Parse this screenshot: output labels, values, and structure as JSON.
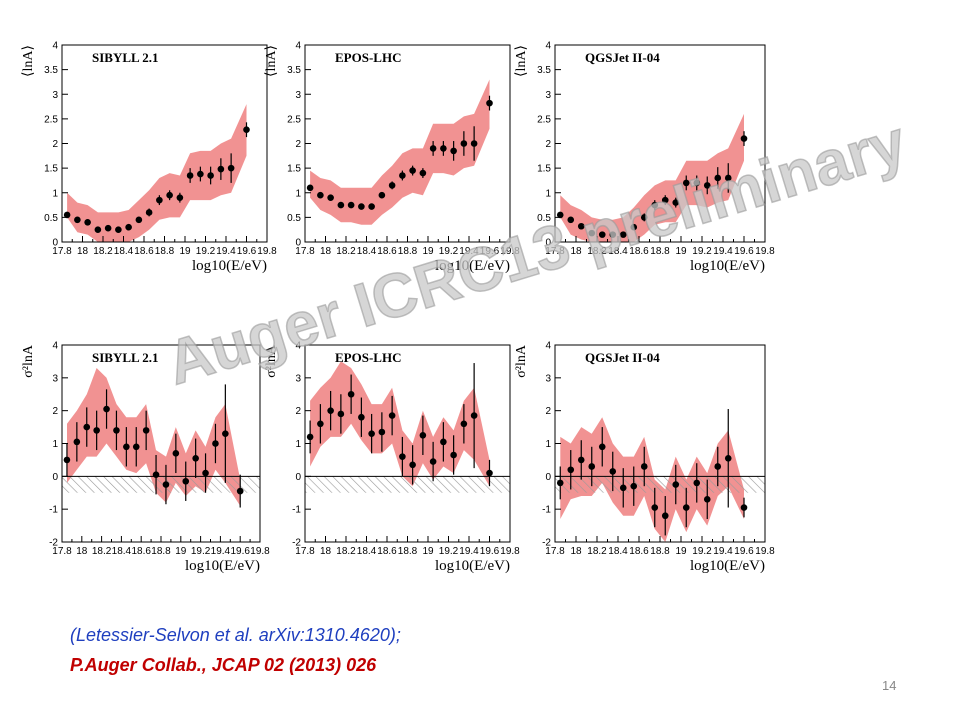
{
  "watermark": "Auger ICRC13 preliminary",
  "references": {
    "line1": "(Letessier-Selvon et al. arXiv:1310.4620);",
    "line2": "P.Auger Collab., JCAP 02 (2013) 026"
  },
  "page_number": "14",
  "colors": {
    "band": "#f08c8c",
    "points": "#000000",
    "hatch": "#9a9a9a",
    "ref_blue": "#1f3fbf",
    "ref_red": "#c00000"
  },
  "chart_data": [
    {
      "id": "lnA-sibyll",
      "type": "scatter",
      "title": "SIBYLL 2.1",
      "ylabel": "⟨lnA⟩",
      "xlabel": "log10(E/eV)",
      "xlim": [
        17.8,
        19.8
      ],
      "ylim": [
        0,
        4
      ],
      "xticks": [
        "17.8",
        "18",
        "18.2",
        "18.4",
        "18.6",
        "18.8",
        "19",
        "19.2",
        "19.4",
        "19.6",
        "19.8"
      ],
      "yticks": [
        "0",
        "0.5",
        "1",
        "1.5",
        "2",
        "2.5",
        "3",
        "3.5",
        "4"
      ],
      "x": [
        17.85,
        17.95,
        18.05,
        18.15,
        18.25,
        18.35,
        18.45,
        18.55,
        18.65,
        18.75,
        18.85,
        18.95,
        19.05,
        19.15,
        19.25,
        19.35,
        19.45,
        19.6
      ],
      "y": [
        0.55,
        0.45,
        0.4,
        0.25,
        0.28,
        0.25,
        0.3,
        0.45,
        0.6,
        0.85,
        0.95,
        0.9,
        1.35,
        1.38,
        1.35,
        1.48,
        1.5,
        2.28
      ],
      "err": [
        0.05,
        0.05,
        0.05,
        0.05,
        0.05,
        0.05,
        0.05,
        0.05,
        0.08,
        0.1,
        0.1,
        0.1,
        0.15,
        0.15,
        0.18,
        0.22,
        0.3,
        0.15
      ],
      "band_low": [
        0.5,
        0.2,
        0.15,
        0,
        0,
        0,
        0,
        0.1,
        0.25,
        0.45,
        0.5,
        0.5,
        0.85,
        0.85,
        0.85,
        0.95,
        1.0,
        1.75
      ],
      "band_high": [
        1.0,
        0.8,
        0.75,
        0.6,
        0.6,
        0.6,
        0.65,
        0.85,
        1.05,
        1.3,
        1.4,
        1.35,
        1.8,
        1.85,
        1.85,
        2.0,
        2.1,
        2.8
      ]
    },
    {
      "id": "lnA-epos",
      "type": "scatter",
      "title": "EPOS-LHC",
      "ylabel": "⟨lnA⟩",
      "xlabel": "log10(E/eV)",
      "xlim": [
        17.8,
        19.8
      ],
      "ylim": [
        0,
        4
      ],
      "xticks": [
        "17.8",
        "18",
        "18.2",
        "18.4",
        "18.6",
        "18.8",
        "19",
        "19.2",
        "19.4",
        "19.6",
        "19.8"
      ],
      "yticks": [
        "0",
        "0.5",
        "1",
        "1.5",
        "2",
        "2.5",
        "3",
        "3.5",
        "4"
      ],
      "x": [
        17.85,
        17.95,
        18.05,
        18.15,
        18.25,
        18.35,
        18.45,
        18.55,
        18.65,
        18.75,
        18.85,
        18.95,
        19.05,
        19.15,
        19.25,
        19.35,
        19.45,
        19.6
      ],
      "y": [
        1.1,
        0.95,
        0.9,
        0.75,
        0.75,
        0.72,
        0.72,
        0.95,
        1.15,
        1.35,
        1.45,
        1.4,
        1.9,
        1.9,
        1.85,
        2.0,
        2.0,
        2.82
      ],
      "err": [
        0.05,
        0.05,
        0.05,
        0.05,
        0.05,
        0.05,
        0.05,
        0.05,
        0.08,
        0.1,
        0.1,
        0.1,
        0.15,
        0.15,
        0.2,
        0.25,
        0.35,
        0.15
      ],
      "band_low": [
        0.9,
        0.65,
        0.55,
        0.4,
        0.4,
        0.35,
        0.35,
        0.55,
        0.7,
        0.9,
        1.0,
        0.95,
        1.4,
        1.4,
        1.35,
        1.5,
        1.55,
        2.3
      ],
      "band_high": [
        1.45,
        1.3,
        1.25,
        1.1,
        1.1,
        1.1,
        1.1,
        1.35,
        1.55,
        1.8,
        1.9,
        1.9,
        2.4,
        2.4,
        2.4,
        2.55,
        2.6,
        3.3
      ]
    },
    {
      "id": "lnA-qgsjet",
      "type": "scatter",
      "title": "QGSJet II-04",
      "ylabel": "⟨lnA⟩",
      "xlabel": "log10(E/eV)",
      "xlim": [
        17.8,
        19.8
      ],
      "ylim": [
        0,
        4
      ],
      "xticks": [
        "17.8",
        "18",
        "18.2",
        "18.4",
        "18.6",
        "18.8",
        "19",
        "19.2",
        "19.4",
        "19.6",
        "19.8"
      ],
      "yticks": [
        "0",
        "0.5",
        "1",
        "1.5",
        "2",
        "2.5",
        "3",
        "3.5",
        "4"
      ],
      "x": [
        17.85,
        17.95,
        18.05,
        18.15,
        18.25,
        18.35,
        18.45,
        18.55,
        18.65,
        18.75,
        18.85,
        18.95,
        19.05,
        19.15,
        19.25,
        19.35,
        19.45,
        19.6
      ],
      "y": [
        0.55,
        0.45,
        0.32,
        0.18,
        0.15,
        0.15,
        0.15,
        0.3,
        0.5,
        0.75,
        0.85,
        0.8,
        1.2,
        1.2,
        1.15,
        1.3,
        1.3,
        2.1
      ],
      "err": [
        0.05,
        0.05,
        0.05,
        0.05,
        0.05,
        0.05,
        0.05,
        0.05,
        0.08,
        0.1,
        0.1,
        0.1,
        0.15,
        0.15,
        0.18,
        0.22,
        0.3,
        0.15
      ],
      "band_low": [
        0.5,
        0.15,
        0.05,
        0,
        0,
        0,
        0,
        0,
        0.15,
        0.35,
        0.4,
        0.4,
        0.75,
        0.75,
        0.7,
        0.8,
        0.85,
        1.65
      ],
      "band_high": [
        0.95,
        0.75,
        0.65,
        0.5,
        0.45,
        0.45,
        0.5,
        0.7,
        0.95,
        1.15,
        1.25,
        1.25,
        1.65,
        1.65,
        1.65,
        1.8,
        1.9,
        2.6
      ]
    },
    {
      "id": "var-sibyll",
      "type": "scatter",
      "title": "SIBYLL 2.1",
      "ylabel": "σ²lnA",
      "xlabel": "log10(E/eV)",
      "xlim": [
        17.8,
        19.8
      ],
      "ylim": [
        -2,
        4
      ],
      "xticks": [
        "17.8",
        "18",
        "18.2",
        "18.4",
        "18.6",
        "18.8",
        "19",
        "19.2",
        "19.4",
        "19.6",
        "19.8"
      ],
      "yticks": [
        "-2",
        "-1",
        "0",
        "1",
        "2",
        "3",
        "4"
      ],
      "x": [
        17.85,
        17.95,
        18.05,
        18.15,
        18.25,
        18.35,
        18.45,
        18.55,
        18.65,
        18.75,
        18.85,
        18.95,
        19.05,
        19.15,
        19.25,
        19.35,
        19.45,
        19.6
      ],
      "y": [
        0.5,
        1.05,
        1.5,
        1.4,
        2.05,
        1.4,
        0.9,
        0.9,
        1.4,
        0.05,
        -0.25,
        0.7,
        -0.15,
        0.55,
        0.1,
        1.0,
        1.3,
        -0.45
      ],
      "err": [
        0.5,
        0.6,
        0.6,
        0.6,
        0.6,
        0.6,
        0.6,
        0.6,
        0.6,
        0.6,
        0.6,
        0.6,
        0.6,
        0.6,
        0.6,
        0.6,
        1.5,
        0.5
      ],
      "band_low": [
        -0.2,
        0.2,
        0.6,
        0.6,
        1.0,
        0.6,
        0.2,
        0.1,
        0.4,
        -0.5,
        -0.8,
        -0.2,
        -0.6,
        -0.3,
        -0.5,
        0.2,
        -0.2,
        -0.9
      ],
      "band_high": [
        1.6,
        2.0,
        2.5,
        3.3,
        3.0,
        2.2,
        1.8,
        1.8,
        2.2,
        0.8,
        0.6,
        1.5,
        0.7,
        1.4,
        0.9,
        1.8,
        2.2,
        -0.1
      ],
      "hatch_range": [
        -0.5,
        0
      ]
    },
    {
      "id": "var-epos",
      "type": "scatter",
      "title": "EPOS-LHC",
      "ylabel": "σ²lnA",
      "xlabel": "log10(E/eV)",
      "xlim": [
        17.8,
        19.8
      ],
      "ylim": [
        -2,
        4
      ],
      "xticks": [
        "17.8",
        "18",
        "18.2",
        "18.4",
        "18.6",
        "18.8",
        "19",
        "19.2",
        "19.4",
        "19.6",
        "19.8"
      ],
      "yticks": [
        "-2",
        "-1",
        "0",
        "1",
        "2",
        "3",
        "4"
      ],
      "x": [
        17.85,
        17.95,
        18.05,
        18.15,
        18.25,
        18.35,
        18.45,
        18.55,
        18.65,
        18.75,
        18.85,
        18.95,
        19.05,
        19.15,
        19.25,
        19.35,
        19.45,
        19.6
      ],
      "y": [
        1.2,
        1.6,
        2.0,
        1.9,
        2.5,
        1.8,
        1.3,
        1.35,
        1.85,
        0.6,
        0.35,
        1.25,
        0.45,
        1.05,
        0.65,
        1.6,
        1.85,
        0.1
      ],
      "err": [
        0.5,
        0.6,
        0.6,
        0.6,
        0.6,
        0.6,
        0.6,
        0.6,
        0.6,
        0.6,
        0.6,
        0.6,
        0.6,
        0.6,
        0.6,
        0.6,
        1.6,
        0.4
      ],
      "band_low": [
        0.3,
        0.9,
        1.2,
        1.2,
        1.6,
        1.1,
        0.7,
        0.7,
        1.0,
        0.0,
        -0.3,
        0.4,
        -0.1,
        0.3,
        0.1,
        0.8,
        0.5,
        -0.3
      ],
      "band_high": [
        2.3,
        2.7,
        3.0,
        3.5,
        3.3,
        2.8,
        2.2,
        2.2,
        2.7,
        1.4,
        1.0,
        2.0,
        1.2,
        1.8,
        1.4,
        2.3,
        2.7,
        0.5
      ],
      "hatch_range": [
        -0.5,
        0
      ]
    },
    {
      "id": "var-qgsjet",
      "type": "scatter",
      "title": "QGSJet II-04",
      "ylabel": "σ²lnA",
      "xlabel": "log10(E/eV)",
      "xlim": [
        17.8,
        19.8
      ],
      "ylim": [
        -2,
        4
      ],
      "xticks": [
        "17.8",
        "18",
        "18.2",
        "18.4",
        "18.6",
        "18.8",
        "19",
        "19.2",
        "19.4",
        "19.6",
        "19.8"
      ],
      "yticks": [
        "-2",
        "-1",
        "0",
        "1",
        "2",
        "3",
        "4"
      ],
      "x": [
        17.85,
        17.95,
        18.05,
        18.15,
        18.25,
        18.35,
        18.45,
        18.55,
        18.65,
        18.75,
        18.85,
        18.95,
        19.05,
        19.15,
        19.25,
        19.35,
        19.45,
        19.6
      ],
      "y": [
        -0.2,
        0.2,
        0.5,
        0.3,
        0.9,
        0.15,
        -0.35,
        -0.3,
        0.3,
        -0.95,
        -1.2,
        -0.25,
        -0.95,
        -0.2,
        -0.7,
        0.3,
        0.55,
        -0.95
      ],
      "err": [
        0.5,
        0.6,
        0.6,
        0.6,
        0.6,
        0.6,
        0.6,
        0.6,
        0.6,
        0.6,
        0.6,
        0.6,
        0.6,
        0.6,
        0.6,
        0.6,
        1.5,
        0.3
      ],
      "band_low": [
        -1.3,
        -0.7,
        -0.6,
        -0.6,
        -0.2,
        -0.8,
        -1.2,
        -1.2,
        -0.6,
        -1.6,
        -2.0,
        -1.0,
        -1.7,
        -1.0,
        -1.5,
        -0.6,
        -0.3,
        -1.3
      ],
      "band_high": [
        1.2,
        1.0,
        1.5,
        1.3,
        1.8,
        1.0,
        0.6,
        0.6,
        1.2,
        -0.1,
        -0.4,
        0.6,
        -0.1,
        0.6,
        0.1,
        1.0,
        1.4,
        -0.4
      ],
      "hatch_range": [
        -0.5,
        0
      ]
    }
  ]
}
